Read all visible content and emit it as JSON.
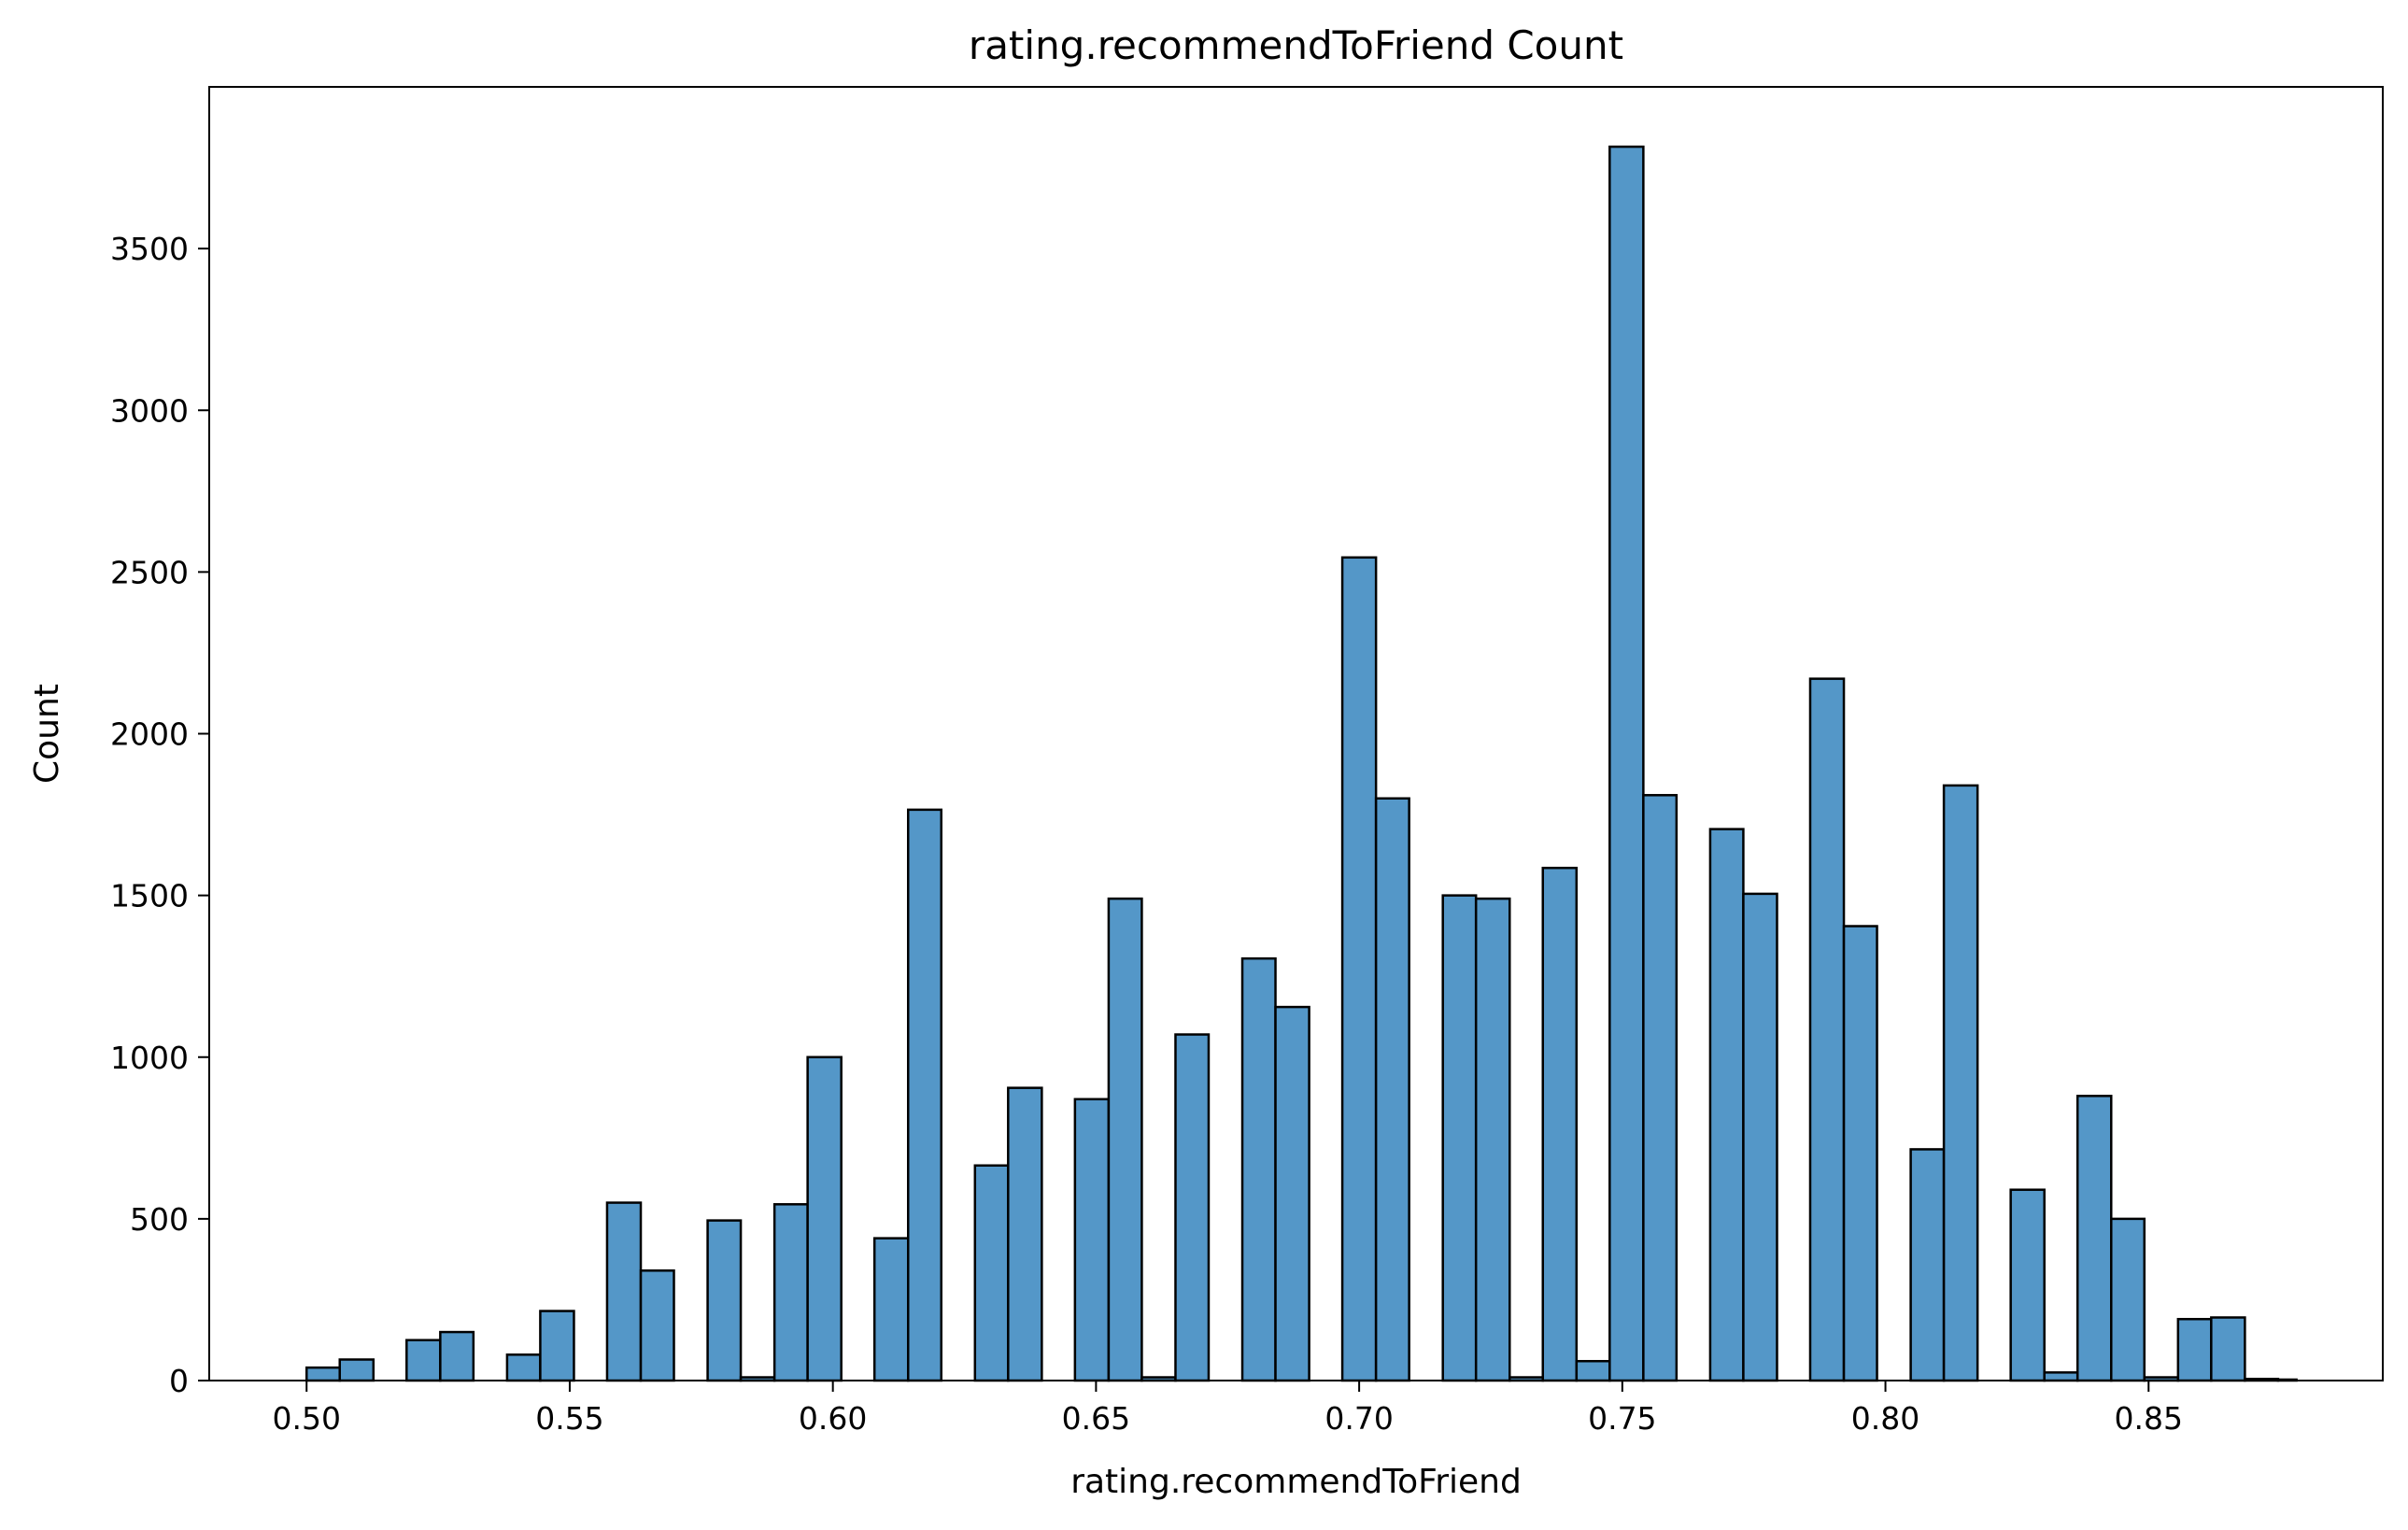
{
  "chart_data": {
    "type": "bar",
    "title": "rating.recommendToFriend Count",
    "xlabel": "rating.recommendToFriend",
    "ylabel": "Count",
    "xlim": [
      0.4815,
      0.8945
    ],
    "ylim": [
      0,
      4000
    ],
    "xticks": [
      "0.50",
      "0.55",
      "0.60",
      "0.65",
      "0.70",
      "0.75",
      "0.80",
      "0.85"
    ],
    "yticks": [
      "0",
      "500",
      "1000",
      "1500",
      "2000",
      "2500",
      "3000",
      "3500"
    ],
    "bin_edges": [
      0.5,
      0.5063,
      0.5127,
      0.519,
      0.5254,
      0.5317,
      0.5381,
      0.5444,
      0.5508,
      0.5571,
      0.5635,
      0.5698,
      0.5762,
      0.5825,
      0.5889,
      0.5952,
      0.6016,
      0.6079,
      0.6143,
      0.6206,
      0.627,
      0.6333,
      0.6397,
      0.646,
      0.6524,
      0.6587,
      0.6651,
      0.6714,
      0.6778,
      0.6841,
      0.6905,
      0.6968,
      0.7032,
      0.7095,
      0.7159,
      0.7222,
      0.7286,
      0.7349,
      0.7413,
      0.7476,
      0.754,
      0.7603,
      0.7667,
      0.773,
      0.7794,
      0.7857,
      0.7921,
      0.7984,
      0.8048,
      0.8111,
      0.8175,
      0.8238,
      0.8302,
      0.8365,
      0.8429,
      0.8492,
      0.8556,
      0.8619,
      0.8683,
      0.8746,
      0.8781
    ],
    "values": [
      40,
      65,
      0,
      125,
      150,
      0,
      80,
      215,
      0,
      550,
      340,
      0,
      495,
      10,
      545,
      1000,
      0,
      440,
      1765,
      0,
      665,
      905,
      0,
      870,
      1490,
      10,
      1070,
      0,
      1305,
      1155,
      0,
      2545,
      1800,
      0,
      1500,
      1490,
      10,
      1585,
      60,
      3815,
      1810,
      0,
      1705,
      1505,
      0,
      2170,
      1405,
      0,
      715,
      1840,
      0,
      590,
      25,
      880,
      500,
      10,
      190,
      195,
      5,
      3
    ],
    "bar_color": "#5497c8",
    "edge_color": "#000000",
    "grid": false,
    "legend": "none"
  }
}
